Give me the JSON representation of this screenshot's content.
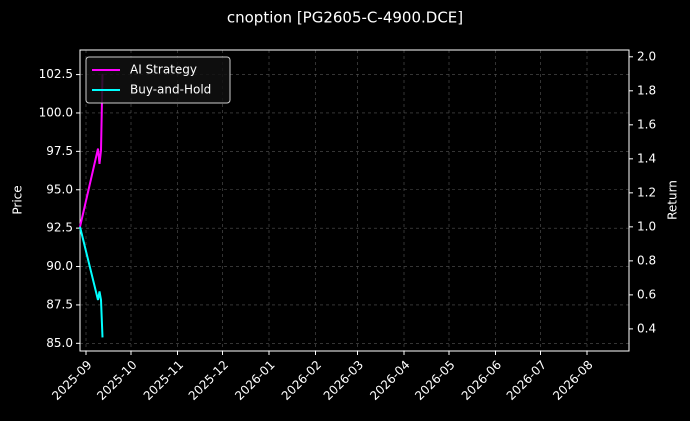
{
  "chart_data": {
    "type": "line",
    "title": "cnoption [PG2605-C-4900.DCE]",
    "y_label": "Price",
    "y2_label": "Return",
    "x": [
      "2025-08-28",
      "2025-09-09",
      "2025-09-10",
      "2025-09-11",
      "2025-09-12"
    ],
    "series": [
      {
        "name": "AI Strategy",
        "color": "#ff00ff",
        "axis": "y2",
        "values": [
          1.0,
          1.46,
          1.37,
          1.45,
          1.9
        ]
      },
      {
        "name": "Buy-and-Hold",
        "color": "#00ffff",
        "axis": "y2",
        "values": [
          1.0,
          0.57,
          0.62,
          0.57,
          0.35
        ]
      }
    ],
    "xlim": [
      "2025-08-28",
      "2026-08-29"
    ],
    "xticks": [
      {
        "value": "2025-09-01",
        "label": "2025-09"
      },
      {
        "value": "2025-10-01",
        "label": "2025-10"
      },
      {
        "value": "2025-11-01",
        "label": "2025-11"
      },
      {
        "value": "2025-12-01",
        "label": "2025-12"
      },
      {
        "value": "2026-01-01",
        "label": "2026-01"
      },
      {
        "value": "2026-02-01",
        "label": "2026-02"
      },
      {
        "value": "2026-03-01",
        "label": "2026-03"
      },
      {
        "value": "2026-04-01",
        "label": "2026-04"
      },
      {
        "value": "2026-05-01",
        "label": "2026-05"
      },
      {
        "value": "2026-06-01",
        "label": "2026-06"
      },
      {
        "value": "2026-07-01",
        "label": "2026-07"
      },
      {
        "value": "2026-08-01",
        "label": "2026-08"
      }
    ],
    "ylim": [
      84.5,
      104.1
    ],
    "yticks": [
      {
        "value": 85,
        "label": "85.0"
      },
      87.5,
      {
        "value": 90,
        "label": "90.0"
      },
      92.5,
      {
        "value": 95,
        "label": "95.0"
      },
      97.5,
      {
        "value": 100,
        "label": "100.0"
      },
      102.5
    ],
    "y2lim": [
      0.27,
      2.04
    ],
    "y2ticks": [
      0.4,
      0.6,
      0.8,
      {
        "value": 1,
        "label": "1.0"
      },
      1.2,
      1.4,
      1.6,
      1.8,
      {
        "value": 2,
        "label": "2.0"
      }
    ],
    "grid": true,
    "legend": "upper left"
  }
}
